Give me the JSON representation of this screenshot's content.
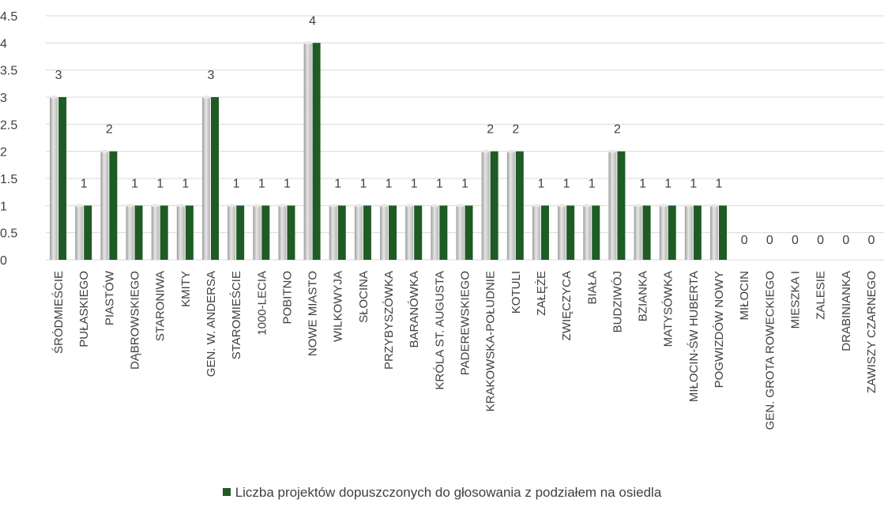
{
  "chart_data": {
    "type": "bar",
    "categories": [
      "ŚRÓDMIEŚCIE",
      "PUŁASKIEGO",
      "PIASTÓW",
      "DĄBROWSKIEGO",
      "STARONIWA",
      "KMITY",
      "GEN. W. ANDERSA",
      "STAROMIEŚCIE",
      "1000-LECIA",
      "POBITNO",
      "NOWE MIASTO",
      "WILKOWYJA",
      "SŁOCINA",
      "PRZYBYSZÓWKA",
      "BARANÓWKA",
      "KRÓLA ST. AUGUSTA",
      "PADEREWSKIEGO",
      "KRAKOWSKA-POŁUDNIE",
      "KOTULI",
      "ZAŁĘŻE",
      "ZWIĘCZYCA",
      "BIAŁA",
      "BUDZIWÓJ",
      "BZIANKA",
      "MATYSÓWKA",
      "MIŁOCIN-ŚW HUBERTA",
      "POGWIZDÓW NOWY",
      "MIŁOCIN",
      "GEN. GROTA ROWECKIEGO",
      "MIESZKA I",
      "ZALESIE",
      "DRABINIANKA",
      "ZAWISZY CZARNEGO"
    ],
    "series": [
      {
        "name": "Liczba projektów dopuszczonych do głosowania z podziałem na osiedla",
        "values": [
          3,
          1,
          2,
          1,
          1,
          1,
          3,
          1,
          1,
          1,
          4,
          1,
          1,
          1,
          1,
          1,
          1,
          2,
          2,
          1,
          1,
          1,
          2,
          1,
          1,
          1,
          1,
          0,
          0,
          0,
          0,
          0,
          0
        ]
      }
    ],
    "yticks": [
      "0",
      "0.5",
      "1",
      "1.5",
      "2",
      "2.5",
      "3",
      "3.5",
      "4",
      "4.5"
    ],
    "ylim": [
      0,
      4.5
    ],
    "grid": true,
    "legend_position": "bottom",
    "colors": {
      "bar": "#1e5b25",
      "shadow": "#bfbfbf",
      "grid": "#d9d9d9",
      "text": "#404040"
    }
  }
}
